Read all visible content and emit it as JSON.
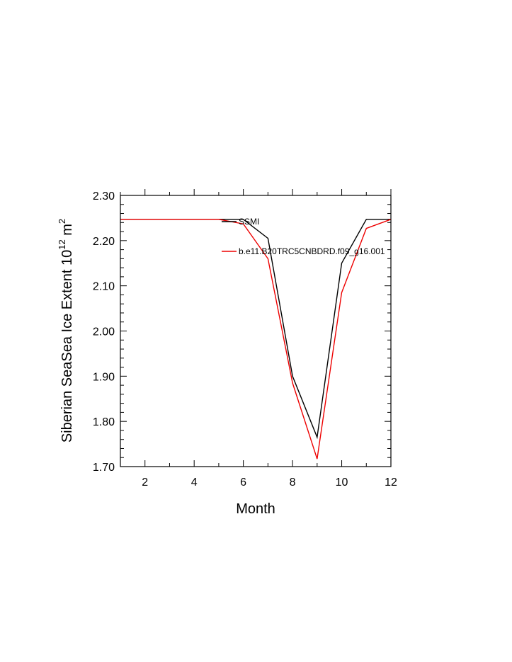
{
  "chart_data": {
    "type": "line",
    "title": "",
    "xlabel": "Month",
    "ylabel": {
      "prefix": "Siberian SeaSea Ice Extent 10",
      "exp1": "12",
      "mid": " m",
      "exp2": "2"
    },
    "xlim": [
      1,
      12
    ],
    "ylim": [
      1.7,
      2.3
    ],
    "xticks": [
      2,
      4,
      6,
      8,
      10,
      12
    ],
    "xtick_labels": [
      "2",
      "4",
      "6",
      "8",
      "10",
      "12"
    ],
    "yticks": [
      1.7,
      1.8,
      1.9,
      2.0,
      2.1,
      2.2,
      2.3
    ],
    "ytick_labels": [
      "1.70",
      "1.80",
      "1.90",
      "2.00",
      "2.10",
      "2.20",
      "2.30"
    ],
    "legend_placement": "upper-right, inside",
    "series": [
      {
        "name": "SSMI",
        "color": "#000000",
        "x": [
          1,
          2,
          3,
          4,
          5,
          6,
          7,
          8,
          9,
          10,
          11,
          12
        ],
        "y": [
          2.247,
          2.247,
          2.247,
          2.247,
          2.247,
          2.247,
          2.205,
          1.9,
          1.765,
          2.15,
          2.247,
          2.247
        ]
      },
      {
        "name": "b.e11.B20TRC5CNBDRD.f09_g16.001",
        "color": "#ee0000",
        "x": [
          1,
          2,
          3,
          4,
          5,
          6,
          7,
          8,
          9,
          10,
          11,
          12
        ],
        "y": [
          2.247,
          2.247,
          2.247,
          2.247,
          2.247,
          2.237,
          2.16,
          1.885,
          1.717,
          2.085,
          2.227,
          2.247
        ]
      }
    ]
  }
}
